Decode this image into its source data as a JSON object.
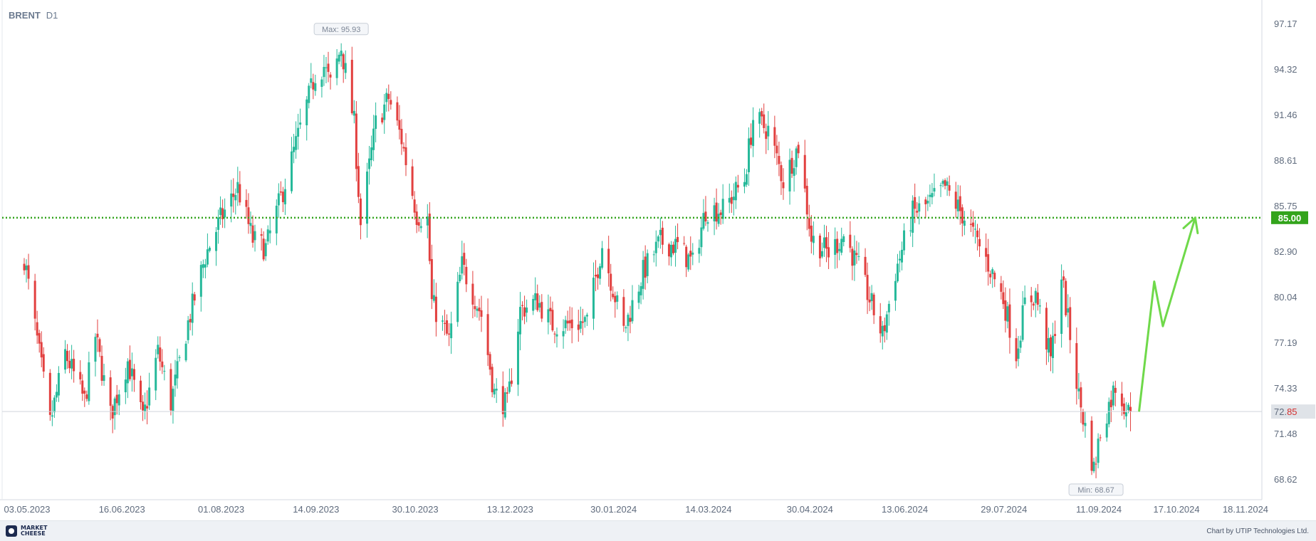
{
  "header": {
    "symbol": "BRENT",
    "timeframe": "D1"
  },
  "footer": {
    "logo_line1": "MARKET",
    "logo_line2": "CHEESE",
    "credit": "Chart by UTIP Technologies Ltd."
  },
  "chart_data": {
    "type": "candlestick",
    "title": "BRENT D1",
    "y_ticks": [
      "97.17",
      "94.32",
      "91.46",
      "88.61",
      "85.75",
      "82.90",
      "80.04",
      "77.19",
      "74.33",
      "71.48",
      "68.62"
    ],
    "ylim": [
      67.0,
      98.6
    ],
    "x_ticks": [
      "03.05.2023",
      "16.06.2023",
      "01.08.2023",
      "14.09.2023",
      "30.10.2023",
      "13.12.2023",
      "30.01.2024",
      "14.03.2024",
      "30.04.2024",
      "13.06.2024",
      "29.07.2024",
      "11.09.2024",
      "17.10.2024",
      "18.11.2024"
    ],
    "colors": {
      "up": "#26b99a",
      "down": "#e2403f",
      "level": "#33a41c",
      "projection": "#6fd94a",
      "text": "#6b7a8f",
      "grid": "#f0f2f5"
    },
    "max_label": "Max: 95.93",
    "min_label": "Min: 68.67",
    "current_price": {
      "value": 72.85,
      "label_main": "72.",
      "label_tail": "85"
    },
    "level": {
      "value": 85.0,
      "label": "85.00",
      "style": "dotted"
    },
    "projection_path": [
      [
        "2024-10-01",
        72.9
      ],
      [
        "2024-10-08",
        81.0
      ],
      [
        "2024-10-12",
        78.2
      ],
      [
        "2024-10-27",
        85.0
      ]
    ],
    "anchors": [
      [
        "2023-05-03",
        82.5
      ],
      [
        "2023-05-09",
        77.3
      ],
      [
        "2023-05-15",
        72.1
      ],
      [
        "2023-05-22",
        76.5
      ],
      [
        "2023-05-31",
        73.5
      ],
      [
        "2023-06-05",
        77.6
      ],
      [
        "2023-06-12",
        72.6
      ],
      [
        "2023-06-20",
        76.0
      ],
      [
        "2023-06-27",
        72.3
      ],
      [
        "2023-07-04",
        76.6
      ],
      [
        "2023-07-10",
        73.4
      ],
      [
        "2023-07-18",
        78.4
      ],
      [
        "2023-07-26",
        82.6
      ],
      [
        "2023-08-02",
        84.9
      ],
      [
        "2023-08-10",
        86.9
      ],
      [
        "2023-08-17",
        83.6
      ],
      [
        "2023-08-23",
        83.1
      ],
      [
        "2023-08-31",
        86.7
      ],
      [
        "2023-09-08",
        90.6
      ],
      [
        "2023-09-15",
        94.0
      ],
      [
        "2023-09-19",
        94.5
      ],
      [
        "2023-09-22",
        93.3
      ],
      [
        "2023-09-27",
        95.7
      ],
      [
        "2023-10-03",
        90.9
      ],
      [
        "2023-10-06",
        84.6
      ],
      [
        "2023-10-13",
        90.9
      ],
      [
        "2023-10-19",
        92.5
      ],
      [
        "2023-10-25",
        89.9
      ],
      [
        "2023-11-01",
        85.2
      ],
      [
        "2023-11-06",
        84.9
      ],
      [
        "2023-11-08",
        79.7
      ],
      [
        "2023-11-16",
        77.3
      ],
      [
        "2023-11-22",
        82.0
      ],
      [
        "2023-12-01",
        78.9
      ],
      [
        "2023-12-07",
        74.0
      ],
      [
        "2023-12-13",
        73.2
      ],
      [
        "2023-12-19",
        79.2
      ],
      [
        "2023-12-27",
        79.8
      ],
      [
        "2024-01-03",
        78.3
      ],
      [
        "2024-01-12",
        78.3
      ],
      [
        "2024-01-19",
        78.5
      ],
      [
        "2024-01-26",
        83.3
      ],
      [
        "2024-02-05",
        77.9
      ],
      [
        "2024-02-14",
        81.6
      ],
      [
        "2024-02-22",
        83.5
      ],
      [
        "2024-03-01",
        83.2
      ],
      [
        "2024-03-08",
        82.1
      ],
      [
        "2024-03-14",
        85.5
      ],
      [
        "2024-03-22",
        85.5
      ],
      [
        "2024-04-01",
        87.4
      ],
      [
        "2024-04-05",
        91.2
      ],
      [
        "2024-04-12",
        90.5
      ],
      [
        "2024-04-19",
        87.3
      ],
      [
        "2024-04-26",
        89.5
      ],
      [
        "2024-05-02",
        83.7
      ],
      [
        "2024-05-10",
        82.8
      ],
      [
        "2024-05-17",
        83.9
      ],
      [
        "2024-05-24",
        81.8
      ],
      [
        "2024-06-04",
        77.6
      ],
      [
        "2024-06-10",
        81.6
      ],
      [
        "2024-06-18",
        85.3
      ],
      [
        "2024-06-25",
        85.8
      ],
      [
        "2024-07-03",
        86.9
      ],
      [
        "2024-07-12",
        85.0
      ],
      [
        "2024-07-22",
        82.4
      ],
      [
        "2024-07-30",
        79.9
      ],
      [
        "2024-08-05",
        76.5
      ],
      [
        "2024-08-09",
        79.6
      ],
      [
        "2024-08-14",
        80.2
      ],
      [
        "2024-08-21",
        76.1
      ],
      [
        "2024-08-26",
        81.4
      ],
      [
        "2024-09-03",
        73.8
      ],
      [
        "2024-09-10",
        69.2
      ],
      [
        "2024-09-13",
        71.6
      ],
      [
        "2024-09-20",
        74.5
      ],
      [
        "2024-09-26",
        72.8
      ],
      [
        "2024-09-27",
        72.9
      ]
    ]
  }
}
